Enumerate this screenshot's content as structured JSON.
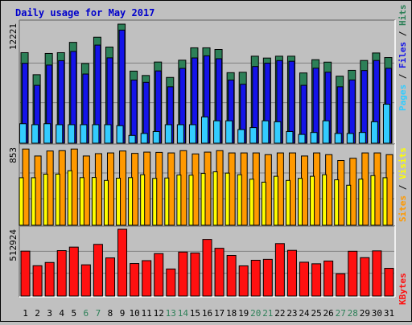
{
  "title": "Daily usage for May 2017",
  "colors": {
    "hits": "#2d8058",
    "files": "#1414e8",
    "pages": "#33ccff",
    "visits": "#ffff00",
    "sites": "#ff9900",
    "kbytes": "#ff1010",
    "title": "#0000cc",
    "weekday": "#000000",
    "weekend": "#2d8058"
  },
  "legend_top": {
    "pages": "Pages",
    "files": "Files",
    "hits": "Hits",
    "sep": "/"
  },
  "legend_mid": {
    "sites": "Sites",
    "visits": "Visits",
    "sep": "/"
  },
  "legend_bot": {
    "kbytes": "KBytes"
  },
  "chart_data": {
    "type": "bar",
    "categories": [
      "1",
      "2",
      "3",
      "4",
      "5",
      "6",
      "7",
      "8",
      "9",
      "10",
      "11",
      "12",
      "13",
      "14",
      "15",
      "16",
      "17",
      "18",
      "19",
      "20",
      "21",
      "22",
      "23",
      "24",
      "25",
      "26",
      "27",
      "28",
      "29",
      "30",
      "31"
    ],
    "weekend_days": [
      6,
      7,
      13,
      14,
      20,
      21,
      27,
      28
    ],
    "panels": [
      {
        "id": "hits_files_pages",
        "ymax_label": "12221",
        "ymax": 12221,
        "series": [
          {
            "name": "Hits",
            "values": [
              9290,
              7030,
              9210,
              9290,
              10350,
              8180,
              10880,
              9870,
              12221,
              7400,
              6950,
              8330,
              6750,
              8520,
              9790,
              9790,
              9620,
              7240,
              7280,
              8930,
              8740,
              8930,
              8930,
              7210,
              8570,
              8320,
              6880,
              7480,
              8490,
              9260,
              8790
            ]
          },
          {
            "name": "Files",
            "values": [
              8200,
              5940,
              8020,
              8470,
              9420,
              7100,
              10070,
              8760,
              11610,
              6480,
              6250,
              7420,
              5790,
              7680,
              8750,
              8970,
              8670,
              6480,
              6050,
              7870,
              8220,
              8480,
              8410,
              5940,
              7700,
              7290,
              5790,
              6490,
              7460,
              8490,
              7690
            ]
          },
          {
            "name": "Pages",
            "values": [
              2000,
              1900,
              2000,
              1900,
              1900,
              1900,
              1900,
              1900,
              1800,
              800,
              1000,
              1200,
              1900,
              1900,
              1900,
              2700,
              2300,
              2300,
              1400,
              1600,
              2300,
              2200,
              1200,
              900,
              1100,
              2300,
              1000,
              1000,
              1100,
              2200,
              4000
            ]
          }
        ]
      },
      {
        "id": "sites_visits",
        "ymax_label": "853",
        "ymax": 853,
        "series": [
          {
            "name": "Sites",
            "values": [
              842,
              765,
              820,
              824,
              842,
              765,
              791,
              799,
              820,
              794,
              808,
              805,
              799,
              824,
              788,
              808,
              824,
              799,
              799,
              799,
              780,
              799,
              799,
              765,
              799,
              780,
              715,
              740,
              799,
              799,
              780
            ]
          },
          {
            "name": "Visits",
            "values": [
              525,
              525,
              564,
              565,
              602,
              526,
              528,
              495,
              520,
              526,
              558,
              518,
              522,
              555,
              553,
              573,
              590,
              576,
              558,
              509,
              476,
              541,
              495,
              518,
              541,
              558,
              502,
              442,
              510,
              549,
              525
            ]
          }
        ]
      },
      {
        "id": "kbytes",
        "ymax_label": "512924",
        "ymax": 512924,
        "series": [
          {
            "name": "KBytes",
            "values": [
              345000,
              233000,
              258000,
              349000,
              376000,
              240000,
              397000,
              293000,
              512924,
              250000,
              272000,
              326000,
              208000,
              338000,
              331000,
              435000,
              367000,
              312000,
              232000,
              275000,
              282000,
              403000,
              351000,
              260000,
              248000,
              269000,
              171000,
              344000,
              295000,
              347000,
              213000
            ]
          }
        ]
      }
    ]
  }
}
